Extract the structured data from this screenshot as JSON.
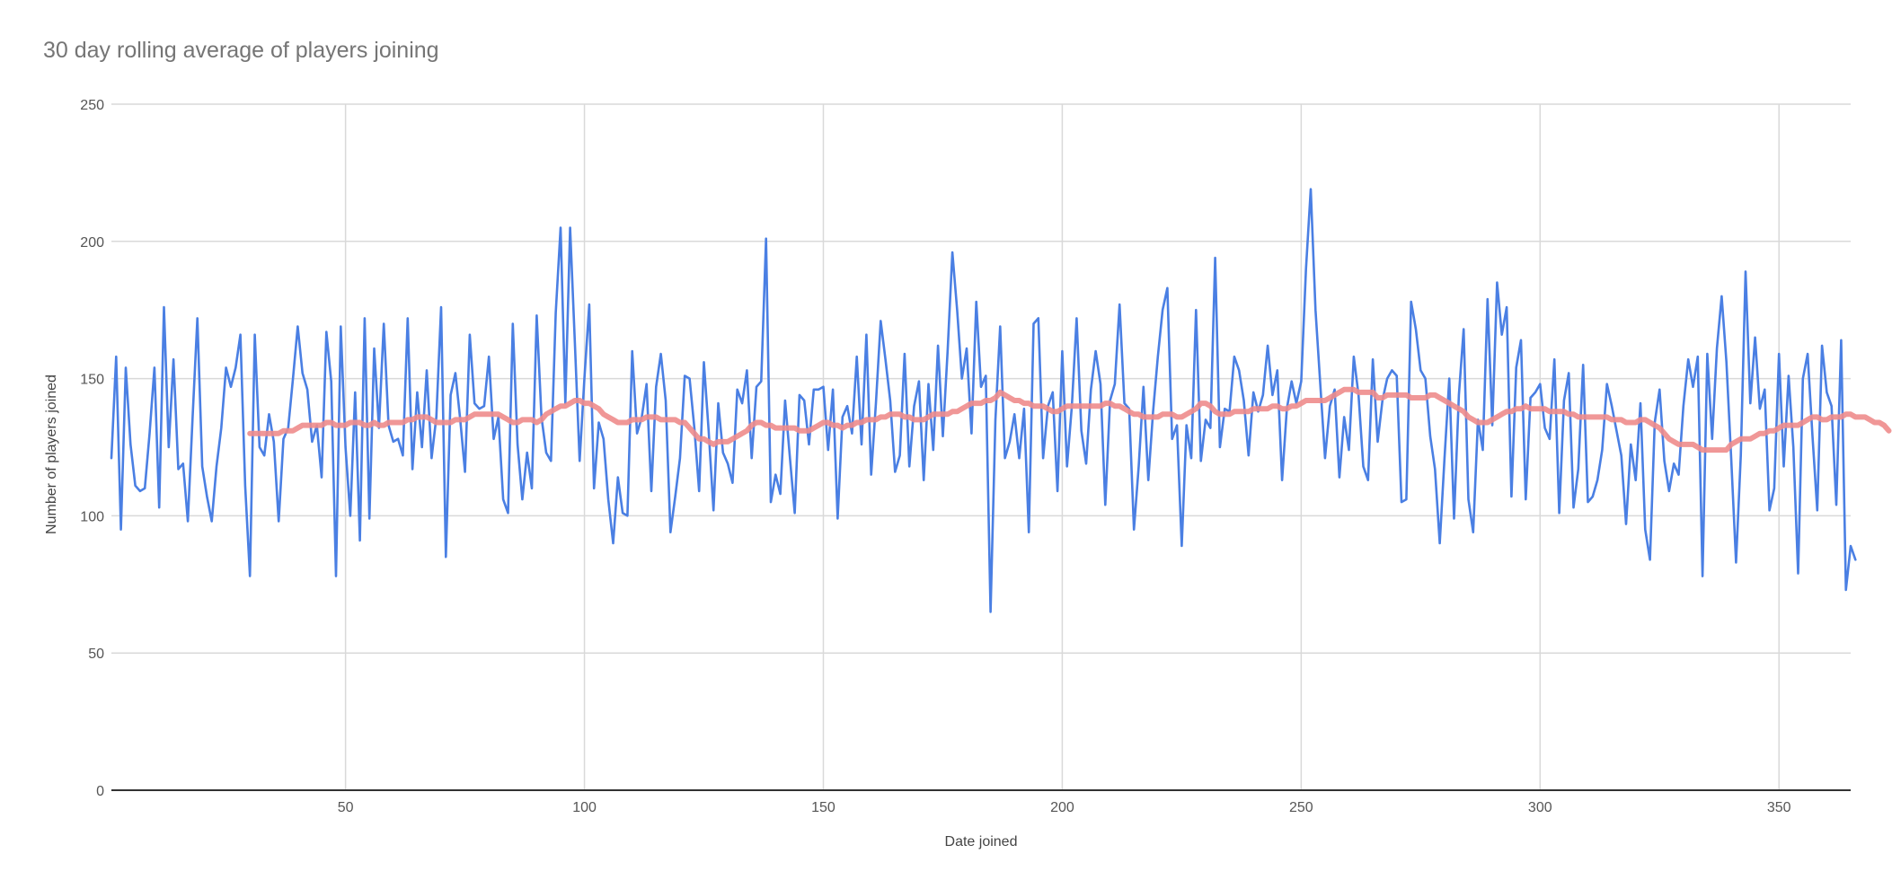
{
  "chart_data": {
    "type": "line",
    "title": "30 day rolling average of players joining",
    "xlabel": "Date joined",
    "ylabel": "Number of players joined",
    "xlim": [
      1,
      365
    ],
    "ylim": [
      0,
      250
    ],
    "x_ticks": [
      50,
      100,
      150,
      200,
      250,
      300,
      350
    ],
    "y_ticks": [
      0,
      50,
      100,
      150,
      200,
      250
    ],
    "grid": true,
    "legend": "none",
    "series": [
      {
        "key": "daily",
        "color": "#4a7fe3",
        "x_start": 1,
        "values": [
          121,
          158,
          95,
          154,
          126,
          111,
          109,
          110,
          130,
          154,
          103,
          176,
          125,
          157,
          117,
          119,
          98,
          136,
          172,
          118,
          107,
          98,
          118,
          132,
          154,
          147,
          154,
          166,
          111,
          78,
          166,
          125,
          122,
          137,
          127,
          98,
          128,
          132,
          150,
          169,
          152,
          146,
          127,
          133,
          114,
          167,
          149,
          78,
          169,
          125,
          100,
          145,
          91,
          172,
          99,
          161,
          132,
          170,
          133,
          127,
          128,
          122,
          172,
          117,
          145,
          125,
          153,
          121,
          136,
          176,
          85,
          144,
          152,
          135,
          116,
          166,
          141,
          139,
          140,
          158,
          128,
          136,
          106,
          101,
          170,
          126,
          106,
          123,
          110,
          173,
          136,
          123,
          120,
          174,
          205,
          141,
          205,
          163,
          120,
          150,
          177,
          110,
          134,
          128,
          106,
          90,
          114,
          101,
          100,
          160,
          130,
          136,
          148,
          109,
          147,
          159,
          142,
          94,
          107,
          121,
          151,
          150,
          132,
          109,
          156,
          131,
          102,
          141,
          123,
          119,
          112,
          146,
          141,
          153,
          121,
          147,
          149,
          201,
          105,
          115,
          108,
          142,
          121,
          101,
          144,
          142,
          126,
          146,
          146,
          147,
          124,
          146,
          99,
          136,
          140,
          130,
          158,
          126,
          166,
          115,
          141,
          171,
          157,
          142,
          116,
          122,
          159,
          118,
          140,
          149,
          113,
          148,
          124,
          162,
          129,
          160,
          196,
          175,
          150,
          161,
          130,
          178,
          147,
          151,
          65,
          135,
          169,
          121,
          127,
          137,
          121,
          139,
          94,
          170,
          172,
          121,
          140,
          145,
          109,
          160,
          118,
          140,
          172,
          131,
          119,
          146,
          160,
          148,
          104,
          142,
          148,
          177,
          141,
          139,
          95,
          118,
          147,
          113,
          138,
          158,
          175,
          183,
          128,
          133,
          89,
          133,
          121,
          175,
          120,
          135,
          132,
          194,
          125,
          139,
          138,
          158,
          153,
          142,
          122,
          145,
          138,
          144,
          162,
          144,
          153,
          113,
          139,
          149,
          141,
          149,
          190,
          219,
          175,
          148,
          121,
          140,
          146,
          114,
          136,
          124,
          158,
          144,
          118,
          113,
          157,
          127,
          142,
          150,
          153,
          151,
          105,
          106,
          178,
          168,
          153,
          150,
          129,
          117,
          90,
          121,
          150,
          99,
          144,
          168,
          106,
          94,
          135,
          124,
          179,
          133,
          185,
          166,
          176,
          107,
          154,
          164,
          106,
          143,
          145,
          148,
          132,
          128,
          157,
          101,
          142,
          152,
          103,
          117,
          155,
          105,
          107,
          113,
          124,
          148,
          140,
          131,
          122,
          97,
          126,
          113,
          141,
          95,
          84,
          134,
          146,
          120,
          109,
          119,
          115,
          140,
          157,
          147,
          158,
          78,
          159,
          128,
          161,
          180,
          156,
          121,
          83,
          122,
          189,
          141,
          165,
          139,
          146,
          102,
          110,
          159,
          118,
          151,
          125,
          79,
          150,
          159,
          129,
          102,
          162,
          145,
          140,
          104,
          164,
          73,
          89,
          84
        ]
      },
      {
        "key": "rolling",
        "color": "#ee8c8c",
        "x_start": 30,
        "values": [
          130,
          130,
          130,
          130,
          130,
          130,
          130,
          131,
          131,
          131,
          132,
          133,
          133,
          133,
          133,
          133,
          134,
          134,
          133,
          133,
          133,
          134,
          134,
          134,
          133,
          133,
          134,
          133,
          133,
          134,
          134,
          134,
          134,
          135,
          135,
          136,
          136,
          136,
          135,
          134,
          134,
          134,
          134,
          135,
          135,
          135,
          136,
          137,
          137,
          137,
          137,
          137,
          137,
          136,
          135,
          134,
          134,
          135,
          135,
          135,
          134,
          135,
          137,
          138,
          139,
          140,
          140,
          141,
          142,
          142,
          141,
          141,
          140,
          139,
          137,
          136,
          135,
          134,
          134,
          134,
          135,
          135,
          135,
          136,
          136,
          136,
          135,
          135,
          135,
          135,
          134,
          134,
          132,
          130,
          128,
          128,
          127,
          126,
          127,
          127,
          127,
          128,
          129,
          130,
          131,
          133,
          134,
          134,
          133,
          133,
          132,
          132,
          132,
          132,
          132,
          131,
          131,
          131,
          132,
          133,
          134,
          134,
          133,
          133,
          132,
          133,
          133,
          134,
          134,
          135,
          135,
          135,
          136,
          136,
          137,
          137,
          137,
          136,
          136,
          135,
          135,
          135,
          136,
          137,
          137,
          137,
          137,
          138,
          138,
          139,
          140,
          141,
          141,
          141,
          142,
          142,
          143,
          145,
          144,
          143,
          142,
          142,
          141,
          141,
          140,
          140,
          140,
          139,
          138,
          138,
          139,
          140,
          140,
          140,
          140,
          140,
          140,
          140,
          140,
          141,
          141,
          140,
          140,
          139,
          138,
          137,
          137,
          136,
          136,
          136,
          136,
          137,
          137,
          137,
          136,
          136,
          137,
          138,
          139,
          141,
          141,
          140,
          138,
          137,
          137,
          137,
          138,
          138,
          138,
          138,
          139,
          139,
          139,
          139,
          140,
          140,
          139,
          139,
          140,
          140,
          141,
          142,
          142,
          142,
          142,
          142,
          143,
          144,
          145,
          146,
          146,
          146,
          145,
          145,
          145,
          145,
          143,
          143,
          144,
          144,
          144,
          144,
          144,
          143,
          143,
          143,
          143,
          144,
          144,
          143,
          142,
          141,
          140,
          139,
          138,
          136,
          135,
          134,
          134,
          134,
          135,
          136,
          137,
          138,
          138,
          139,
          139,
          140,
          139,
          139,
          139,
          139,
          138,
          138,
          138,
          138,
          137,
          137,
          136,
          136,
          136,
          136,
          136,
          136,
          136,
          135,
          135,
          135,
          134,
          134,
          134,
          135,
          135,
          134,
          133,
          132,
          130,
          128,
          127,
          126,
          126,
          126,
          126,
          125,
          124,
          124,
          124,
          124,
          124,
          124,
          126,
          127,
          128,
          128,
          128,
          129,
          130,
          130,
          131,
          131,
          132,
          133,
          133,
          133,
          133,
          134,
          135,
          136,
          136,
          135,
          135,
          136,
          136,
          136,
          137,
          137,
          136,
          136,
          136,
          135,
          134,
          134,
          133,
          131
        ]
      }
    ]
  }
}
